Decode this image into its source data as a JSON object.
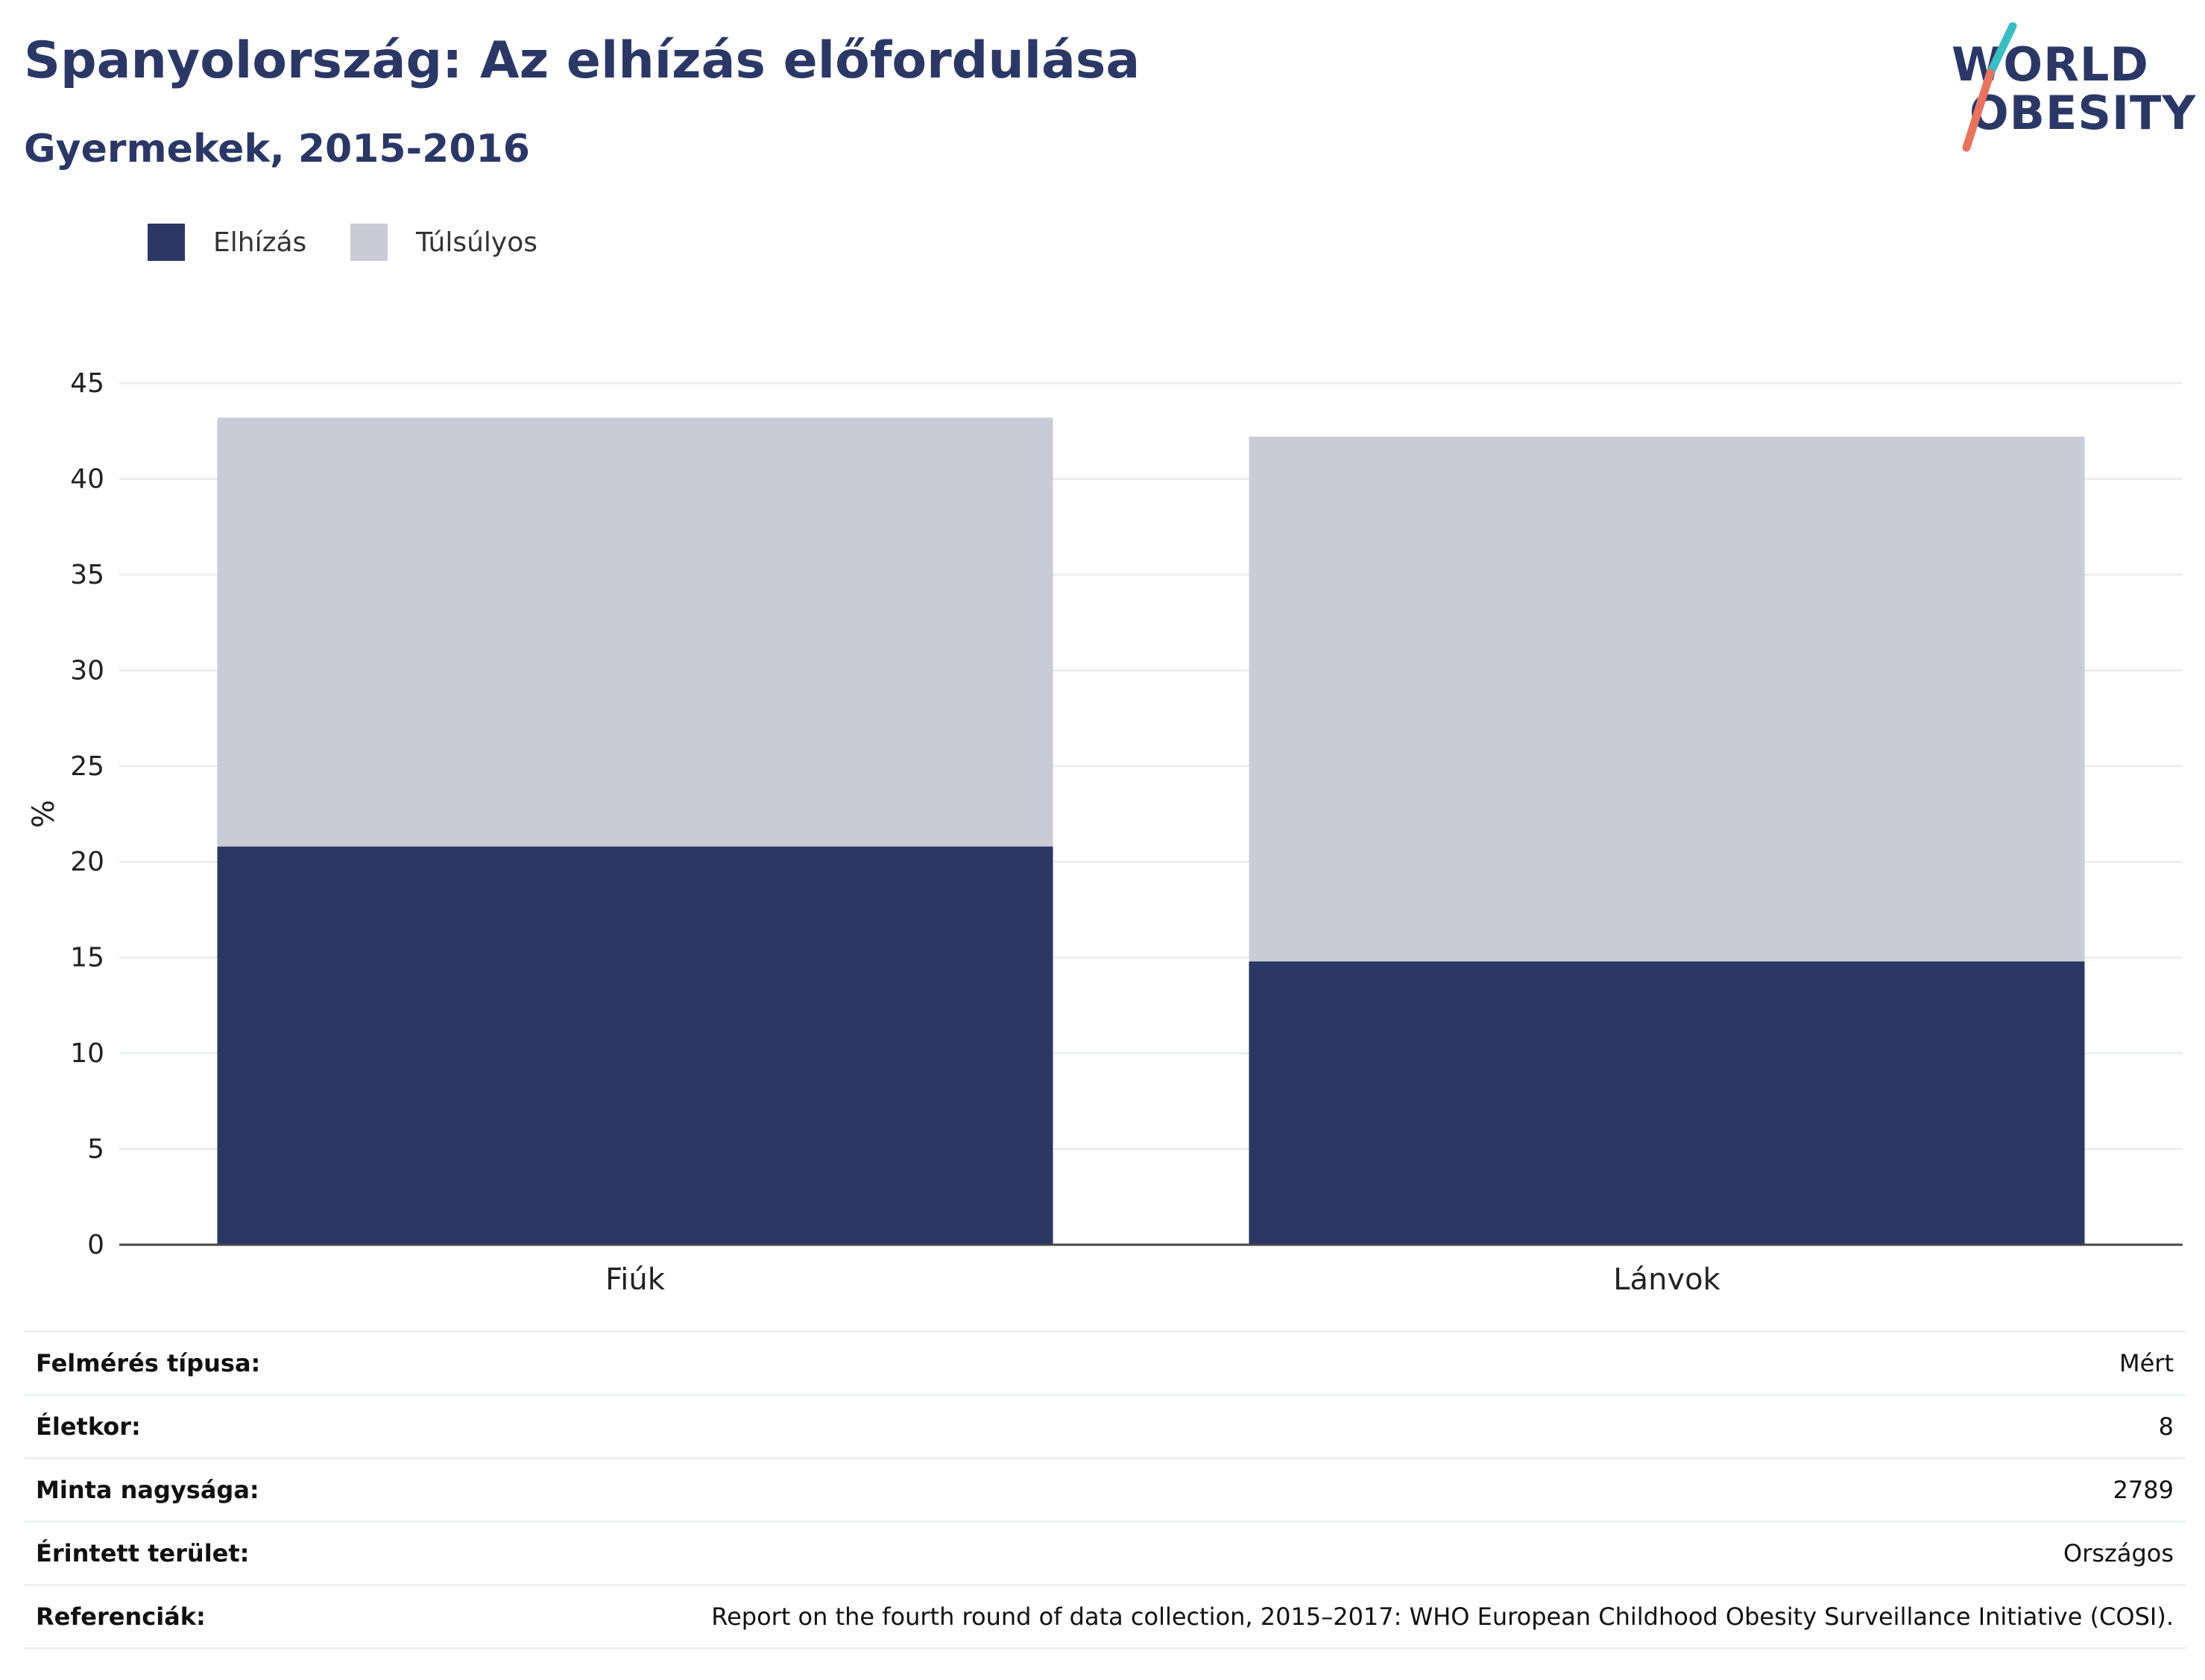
{
  "header": {
    "title": "Spanyolország: Az elhízás előfordulása",
    "subtitle": "Gyermekek, 2015-2016"
  },
  "logo": {
    "line1": "WORLD",
    "line2": "OBESITY",
    "colors": {
      "text": "#2b3765",
      "slash_top": "#3bbdc1",
      "slash_bottom": "#e8735f"
    }
  },
  "legend": [
    {
      "label": "Elhízás",
      "color": "#2b3765"
    },
    {
      "label": "Túlsúlyos",
      "color": "#cacbd6"
    }
  ],
  "chart_data": {
    "type": "bar",
    "stacked": true,
    "categories": [
      "Fiúk",
      "Lányok"
    ],
    "series": [
      {
        "name": "Elhízás",
        "values": [
          20.8,
          14.8
        ],
        "color": "#2b3765"
      },
      {
        "name": "Túlsúlyos",
        "values": [
          22.4,
          27.4
        ],
        "color": "#cacbd6"
      }
    ],
    "ylabel": "%",
    "ylim": [
      0,
      45
    ],
    "yticks": [
      0,
      5,
      10,
      15,
      20,
      25,
      30,
      35,
      40,
      45
    ],
    "grid": true,
    "legend_position": "top-left"
  },
  "info_table": [
    {
      "label": "Felmérés típusa:",
      "value": "Mért"
    },
    {
      "label": "Életkor:",
      "value": "8"
    },
    {
      "label": "Minta nagysága:",
      "value": "2789"
    },
    {
      "label": "Érintett terület:",
      "value": "Országos"
    },
    {
      "label": "Referenciák:",
      "value": "Report on the fourth round of data collection, 2015–2017: WHO European Childhood Obesity Surveillance Initiative (COSI)."
    }
  ]
}
